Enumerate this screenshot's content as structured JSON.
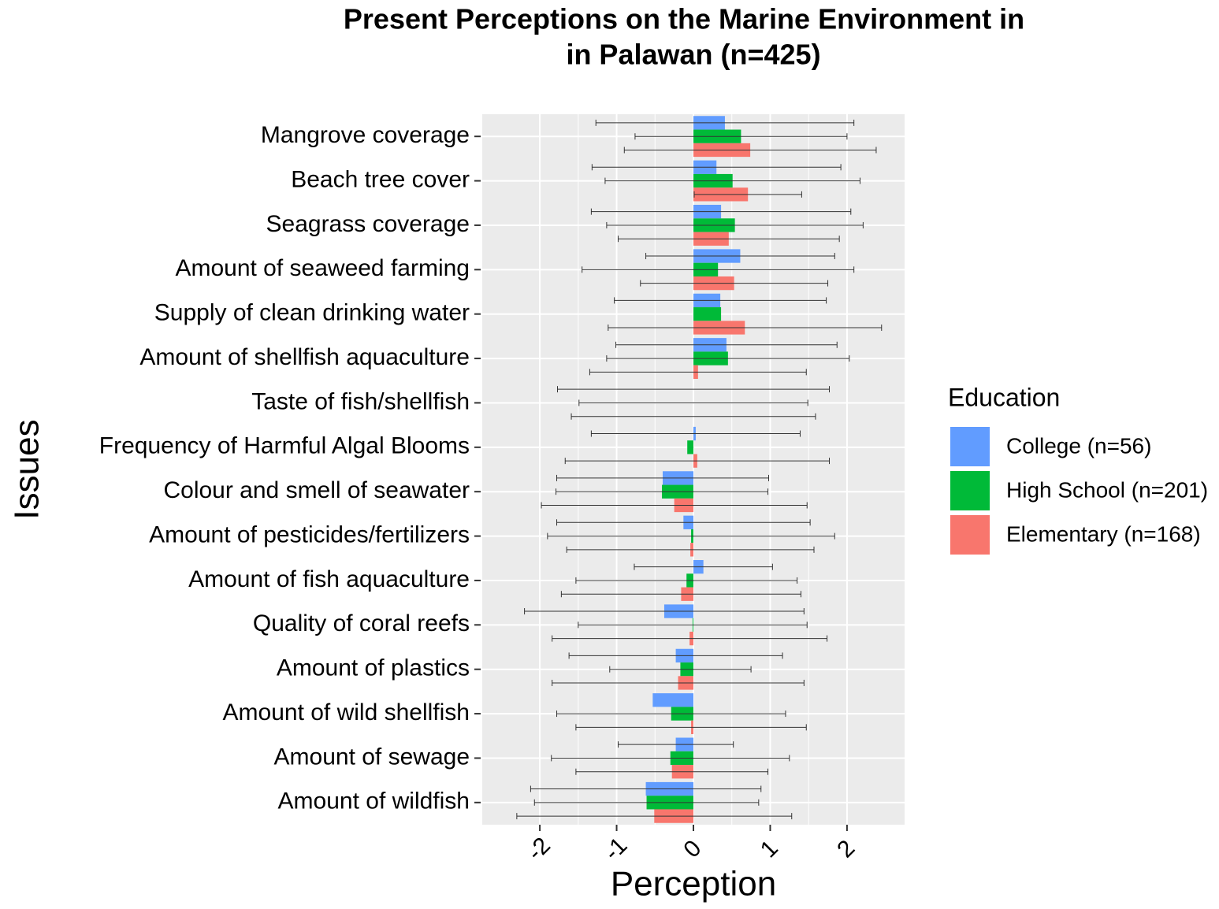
{
  "chart_data": {
    "type": "bar",
    "orientation": "horizontal",
    "title": [
      "Present Perceptions on the Marine Environment in",
      "in Palawan (n=425)"
    ],
    "x_label": "Perception",
    "y_label": "Issues",
    "legend_title": "Education",
    "legend_position": "right",
    "grid": true,
    "xlim": [
      -2.75,
      2.75
    ],
    "xticks": [
      -2,
      -1,
      0,
      1,
      2
    ],
    "categories": [
      "Mangrove coverage",
      "Beach tree cover",
      "Seagrass coverage",
      "Amount of seaweed farming",
      "Supply of clean drinking water",
      "Amount of shellfish aquaculture",
      "Taste of fish/shellfish",
      "Frequency of Harmful Algal Blooms",
      "Colour and smell of seawater",
      "Amount of pesticides/fertilizers",
      "Amount of fish aquaculture",
      "Quality of coral reefs",
      "Amount of plastics",
      "Amount of wild shellfish",
      "Amount of sewage",
      "Amount of wildfish"
    ],
    "series": [
      {
        "name": "College (n=56)",
        "color": "#619CFF",
        "values": [
          0.41,
          0.3,
          0.36,
          0.61,
          0.35,
          0.43,
          0,
          0.03,
          -0.4,
          -0.13,
          0.13,
          -0.38,
          -0.23,
          -0.53,
          -0.23,
          -0.62
        ],
        "errors": [
          1.68,
          1.62,
          1.69,
          1.23,
          1.38,
          1.44,
          1.77,
          1.36,
          1.38,
          1.65,
          0.9,
          1.82,
          1.39,
          null,
          0.75,
          1.5
        ]
      },
      {
        "name": "High School (n=201)",
        "color": "#00BA38",
        "values": [
          0.62,
          0.51,
          0.54,
          0.32,
          0.36,
          0.45,
          0,
          -0.08,
          -0.41,
          -0.03,
          -0.09,
          -0.01,
          -0.17,
          -0.29,
          -0.3,
          -0.61
        ],
        "errors": [
          1.38,
          1.66,
          1.67,
          1.77,
          null,
          1.58,
          1.49,
          null,
          1.38,
          1.87,
          1.44,
          1.49,
          0.92,
          1.49,
          1.55,
          1.46
        ]
      },
      {
        "name": "Elementary (n=168)",
        "color": "#F8766D",
        "values": [
          0.74,
          0.71,
          0.46,
          0.53,
          0.67,
          0.06,
          0,
          0.05,
          -0.25,
          -0.04,
          -0.16,
          -0.05,
          -0.2,
          -0.03,
          -0.28,
          -0.51
        ],
        "errors": [
          1.64,
          0.7,
          1.44,
          1.22,
          1.78,
          1.41,
          1.59,
          1.72,
          1.73,
          1.61,
          1.56,
          1.79,
          1.64,
          1.5,
          1.25,
          1.79
        ]
      }
    ]
  }
}
